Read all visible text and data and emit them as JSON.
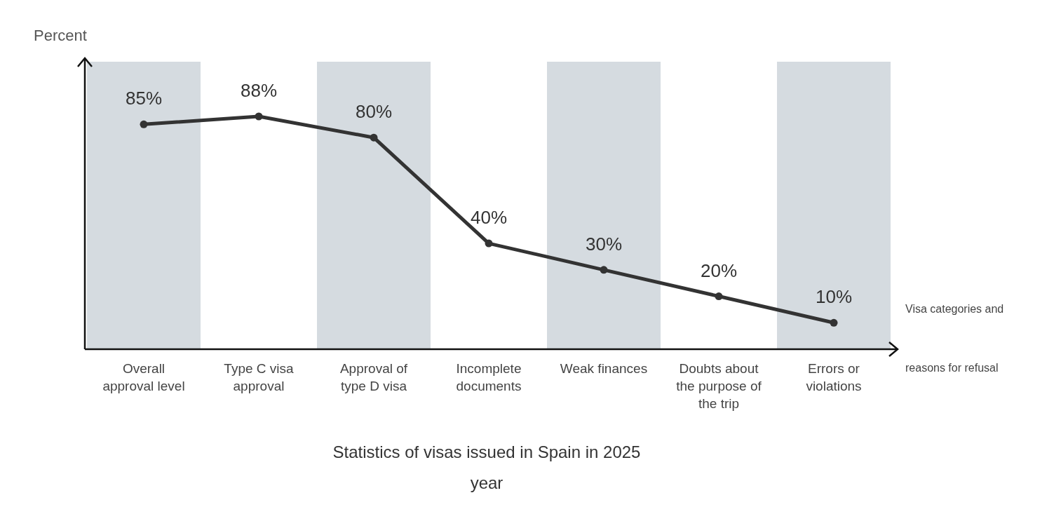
{
  "chart_data": {
    "type": "line",
    "title": "Statistics of visas issued in Spain in 2025 year",
    "ylabel": "Percent",
    "xlabel": "Visa categories and reasons for refusal",
    "categories": [
      "Overall approval level",
      "Type C visa approval",
      "Approval of type D visa",
      "Incomplete documents",
      "Weak finances",
      "Doubts about the purpose of the trip",
      "Errors or violations"
    ],
    "series": [
      {
        "color": "#333333",
        "values": [
          85,
          88,
          80,
          40,
          30,
          20,
          10
        ],
        "value_labels": [
          "85%",
          "88%",
          "80%",
          "40%",
          "30%",
          "20%",
          "10%"
        ]
      }
    ],
    "marker": "circle",
    "line_style": "solid",
    "grid": false
  }
}
